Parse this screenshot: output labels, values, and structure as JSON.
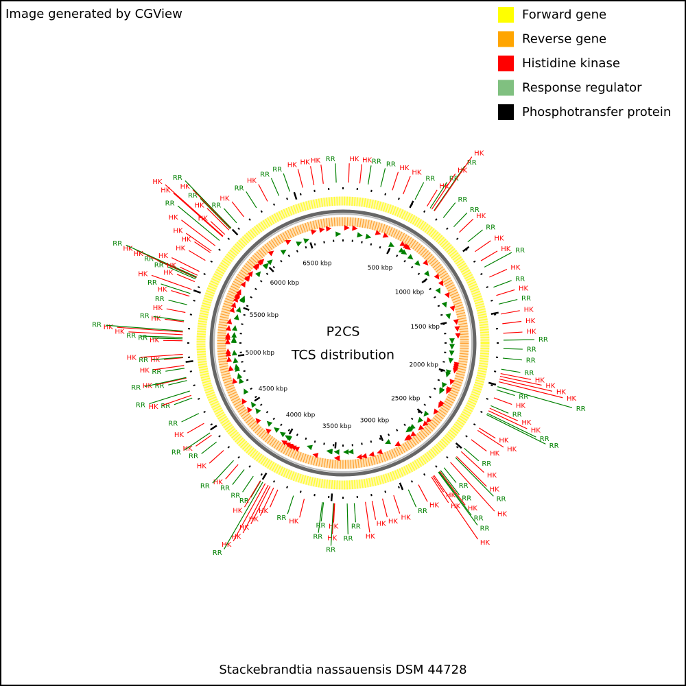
{
  "header": {
    "credit": "Image generated by CGView"
  },
  "legend": [
    {
      "label": "Forward gene",
      "color": "#ffff00"
    },
    {
      "label": "Reverse gene",
      "color": "#ffa500"
    },
    {
      "label": "Histidine kinase",
      "color": "#ff0000"
    },
    {
      "label": "Response regulator",
      "color": "#80c080"
    },
    {
      "label": "Phosphotransfer protein",
      "color": "#000000"
    }
  ],
  "center": {
    "title": "P2CS",
    "subtitle": "TCS distribution"
  },
  "footer": {
    "organism": "Stackebrandtia nassauensis DSM 44728"
  },
  "map": {
    "xlim": [
      0,
      6841
    ],
    "ticks": [
      {
        "value": 500,
        "label": "500 kbp"
      },
      {
        "value": 1000,
        "label": "1000 kbp"
      },
      {
        "value": 1500,
        "label": "1500 kbp"
      },
      {
        "value": 2000,
        "label": "2000 kbp"
      },
      {
        "value": 2500,
        "label": "2500 kbp"
      },
      {
        "value": 3000,
        "label": "3000 kbp"
      },
      {
        "value": 3500,
        "label": "3500 kbp"
      },
      {
        "value": 4000,
        "label": "4000 kbp"
      },
      {
        "value": 4500,
        "label": "4500 kbp"
      },
      {
        "value": 5000,
        "label": "5000 kbp"
      },
      {
        "value": 5500,
        "label": "5500 kbp"
      },
      {
        "value": 6000,
        "label": "6000 kbp"
      },
      {
        "value": 6500,
        "label": "6500 kbp"
      }
    ],
    "label_colors": {
      "HK": "#ff0000",
      "RR": "#008000"
    },
    "features": {
      "labels": [
        "HK",
        "HK",
        "RR",
        "RR",
        "HK",
        "HK",
        "RR",
        "HK",
        "RR",
        "HK",
        "RR",
        "HK",
        "RR",
        "RR",
        "HK",
        "RR",
        "HK",
        "HK",
        "RR",
        "HK",
        "RR",
        "HK",
        "RR",
        "HK",
        "HK",
        "HK",
        "RR",
        "RR",
        "RR",
        "RR",
        "HK",
        "HK",
        "HK",
        "HK",
        "RR",
        "RR",
        "HK",
        "RR",
        "HK",
        "HK",
        "RR",
        "RR",
        "HK",
        "HK",
        "HK",
        "RR",
        "HK",
        "HK",
        "RR",
        "HK",
        "RR",
        "RR",
        "HK",
        "RR",
        "RR",
        "HK",
        "HK",
        "HK",
        "HK",
        "RR",
        "HK",
        "HK",
        "HK",
        "HK",
        "RR",
        "RR",
        "HK",
        "HK",
        "RR",
        "RR",
        "RR",
        "HK",
        "RR",
        "HK",
        "HK",
        "HK",
        "HK",
        "HK",
        "RR",
        "RR",
        "HK",
        "RR",
        "RR",
        "HK",
        "RR",
        "HK",
        "RR",
        "HK",
        "RR",
        "HK",
        "RR",
        "RR",
        "HK",
        "RR",
        "RR",
        "HK",
        "RR",
        "RR",
        "HK",
        "HK",
        "RR",
        "HK",
        "HK",
        "RR",
        "RR",
        "HK",
        "HK",
        "RR",
        "HK",
        "RR",
        "HK",
        "RR",
        "HK",
        "RR",
        "HK",
        "HK",
        "RR",
        "RR",
        "HK",
        "HK",
        "RR",
        "HK",
        "HK",
        "HK",
        "HK",
        "HK",
        "HK",
        "RR",
        "HK",
        "HK",
        "HK",
        "HK",
        "RR",
        "HK",
        "RR",
        "RR",
        "HK",
        "RR",
        "HK",
        "RR",
        "RR",
        "HK",
        "HK",
        "HK",
        "RR"
      ],
      "positions": [
        38,
        114,
        171,
        258,
        340,
        418,
        507,
        600,
        625,
        638,
        656,
        659,
        735,
        829,
        882,
        969,
        1051,
        1125,
        1174,
        1250,
        1324,
        1383,
        1444,
        1513,
        1579,
        1644,
        1691,
        1748,
        1813,
        1889,
        1919,
        1938,
        1957,
        1976,
        2010,
        2033,
        2090,
        2147,
        2166,
        2185,
        2204,
        2214,
        2318,
        2337,
        2413,
        2489,
        2519,
        2565,
        2575,
        2622,
        2679,
        2709,
        2717,
        2723,
        2728,
        2765,
        2774,
        2785,
        2888,
        2964,
        3071,
        3150,
        3222,
        3268,
        3344,
        3392,
        3477,
        3481,
        3485,
        3553,
        3561,
        3686,
        3762,
        3876,
        3907,
        3933,
        3948,
        3971,
        3990,
        4006,
        4009,
        4066,
        4142,
        4196,
        4237,
        4333,
        4408,
        4465,
        4484,
        4560,
        4636,
        4750,
        4769,
        4800,
        4874,
        4891,
        4895,
        4959,
        4978,
        5031,
        5035,
        5054,
        5146,
        5159,
        5168,
        5187,
        5206,
        5212,
        5275,
        5282,
        5339,
        5393,
        5453,
        5472,
        5501,
        5558,
        5577,
        5586,
        5588,
        5590,
        5592,
        5605,
        5634,
        5719,
        5782,
        5795,
        5839,
        5885,
        5919,
        5923,
        5940,
        5981,
        5993,
        5997,
        6001,
        6052,
        6116,
        6221,
        6308,
        6394,
        6473,
        6565,
        6643,
        6707,
        6795
      ]
    }
  }
}
